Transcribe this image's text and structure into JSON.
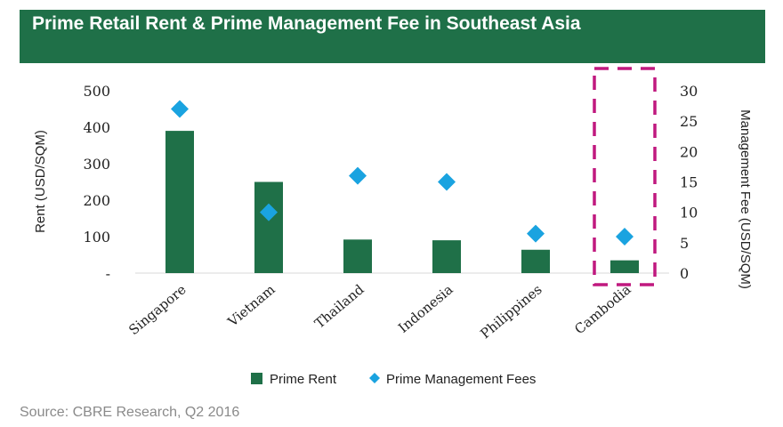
{
  "header": {
    "title": "Prime Retail Rent & Prime Management Fee in Southeast Asia"
  },
  "source": "Source: CBRE Research, Q2 2016",
  "chart_data": {
    "type": "bar",
    "categories": [
      "Singapore",
      "Vietnam",
      "Thailand",
      "Indonesia",
      "Philippines",
      "Cambodia"
    ],
    "series": [
      {
        "name": "Prime Rent",
        "type": "bar",
        "axis": "left",
        "values": [
          390,
          250,
          92,
          90,
          64,
          35
        ],
        "color": "#1f7048"
      },
      {
        "name": "Prime Management Fees",
        "type": "scatter",
        "marker": "diamond",
        "axis": "right",
        "values": [
          27,
          10,
          16,
          15,
          6.5,
          6
        ],
        "color": "#1aa3e0"
      }
    ],
    "ylabel": "Rent (USD/SQM)",
    "ylabel_right": "Management Fee (USD/SQM)",
    "ylim": [
      0,
      500
    ],
    "ylim_right": [
      0,
      30
    ],
    "yticks": [
      "-",
      "100",
      "200",
      "300",
      "400",
      "500"
    ],
    "yticks_right": [
      "0",
      "5",
      "10",
      "15",
      "20",
      "25",
      "30"
    ],
    "highlight": {
      "category": "Cambodia",
      "style": "dashed-box",
      "color": "#c0197f"
    },
    "legend": {
      "position": "bottom",
      "entries": [
        "Prime Rent",
        "Prime Management Fees"
      ]
    },
    "grid": false
  }
}
